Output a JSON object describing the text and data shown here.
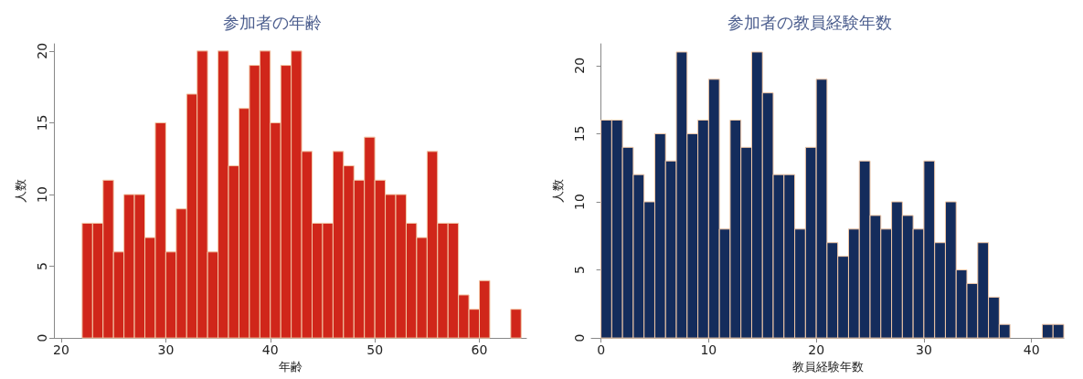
{
  "chart_data": [
    {
      "type": "histogram",
      "title": "参加者の年齢",
      "xlabel": "年齢",
      "ylabel": "人数",
      "color": "#d0261a",
      "bins": [
        22,
        23,
        24,
        25,
        26,
        27,
        28,
        29,
        30,
        31,
        32,
        33,
        34,
        35,
        36,
        37,
        38,
        39,
        40,
        41,
        42,
        43,
        44,
        45,
        46,
        47,
        48,
        49,
        50,
        51,
        52,
        53,
        54,
        55,
        56,
        57,
        58,
        59,
        60,
        61,
        62,
        63,
        64
      ],
      "values": [
        8,
        8,
        11,
        6,
        10,
        10,
        7,
        15,
        6,
        9,
        17,
        20,
        6,
        20,
        12,
        16,
        19,
        20,
        15,
        19,
        20,
        13,
        8,
        8,
        13,
        12,
        11,
        14,
        11,
        10,
        10,
        8,
        7,
        13,
        8,
        8,
        3,
        2,
        4,
        0,
        0,
        2
      ],
      "xlim": [
        19.3,
        64.5
      ],
      "xticks": [
        20,
        30,
        40,
        50,
        60
      ],
      "ylim": [
        0,
        20.5
      ],
      "yticks": [
        0,
        5,
        10,
        15,
        20
      ],
      "grid": false
    },
    {
      "type": "histogram",
      "title": "参加者の教員経験年数",
      "xlabel": "教員経験年数",
      "ylabel": "人数",
      "color": "#142c5c",
      "bins": [
        0,
        1,
        2,
        3,
        4,
        5,
        6,
        7,
        8,
        9,
        10,
        11,
        12,
        13,
        14,
        15,
        16,
        17,
        18,
        19,
        20,
        21,
        22,
        23,
        24,
        25,
        26,
        27,
        28,
        29,
        30,
        31,
        32,
        33,
        34,
        35,
        36,
        37,
        38,
        39,
        40,
        41,
        42,
        43
      ],
      "values": [
        16,
        16,
        14,
        12,
        10,
        15,
        13,
        21,
        15,
        16,
        19,
        8,
        16,
        14,
        21,
        18,
        12,
        12,
        8,
        14,
        19,
        7,
        6,
        8,
        13,
        9,
        8,
        10,
        9,
        8,
        13,
        7,
        10,
        5,
        4,
        7,
        3,
        1,
        0,
        0,
        0,
        1,
        1
      ],
      "xlim": [
        -0.9,
        43
      ],
      "xticks": [
        0,
        10,
        20,
        30,
        40
      ],
      "ylim": [
        0,
        21.6
      ],
      "yticks": [
        0,
        5,
        10,
        15,
        20
      ],
      "grid": false
    }
  ]
}
